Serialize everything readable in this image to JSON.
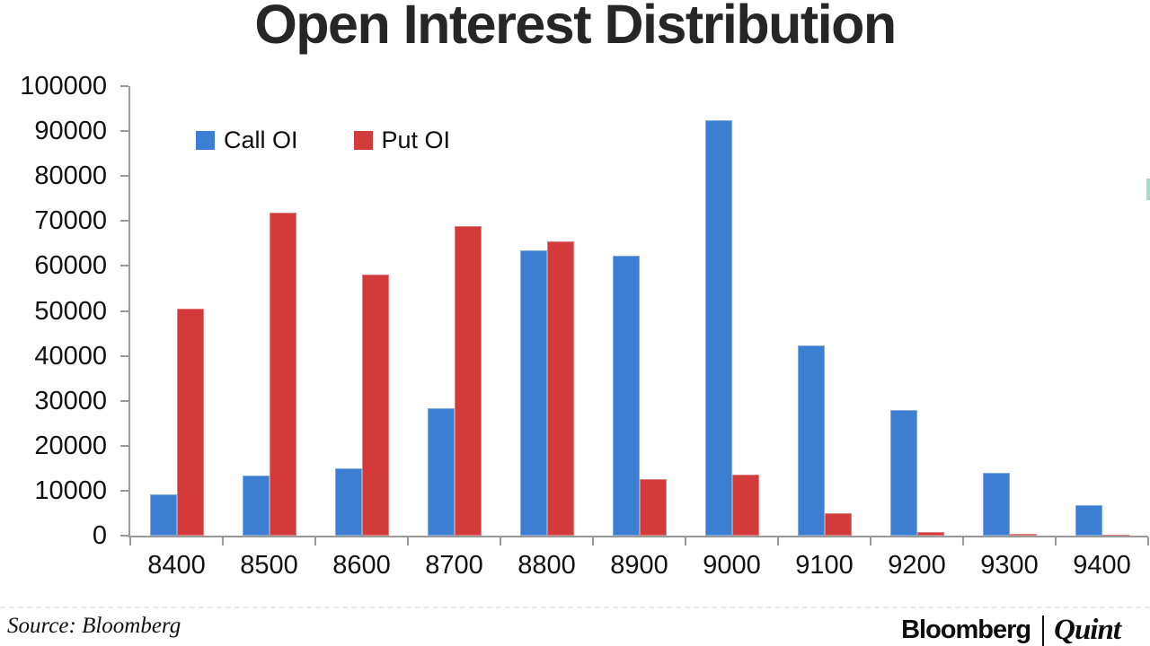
{
  "title": "Open Interest Distribution",
  "source_label": "Source: Bloomberg",
  "branding": {
    "bloomberg": "Bloomberg",
    "quint": "Quint"
  },
  "colors": {
    "call": "#3b7ed2",
    "put": "#d23b3a",
    "axis": "#989898",
    "title_text": "#262626",
    "teal_accent": "#a9d8c8"
  },
  "chart_data": {
    "type": "bar",
    "title": "Open Interest Distribution",
    "xlabel": "",
    "ylabel": "",
    "categories": [
      "8400",
      "8500",
      "8600",
      "8700",
      "8800",
      "8900",
      "9000",
      "9100",
      "9200",
      "9300",
      "9400"
    ],
    "series": [
      {
        "name": "Call OI",
        "color": "#3b7ed2",
        "values": [
          9100,
          13400,
          14900,
          28400,
          63400,
          62200,
          92500,
          42400,
          27900,
          13900,
          6700
        ]
      },
      {
        "name": "Put OI",
        "color": "#d23b3a",
        "values": [
          50500,
          71800,
          58000,
          68900,
          65500,
          12600,
          13600,
          4900,
          800,
          400,
          300
        ]
      }
    ],
    "ylim": [
      0,
      100000
    ],
    "ytick_step": 10000,
    "yticks": [
      "0",
      "10000",
      "20000",
      "30000",
      "40000",
      "50000",
      "60000",
      "70000",
      "80000",
      "90000",
      "100000"
    ],
    "grid": false,
    "legend_position": "inside-top-left"
  }
}
